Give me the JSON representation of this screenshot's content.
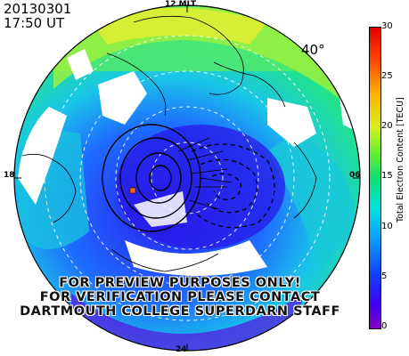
{
  "header": {
    "date": "20130301",
    "time": "17:50 UT"
  },
  "map": {
    "mlt_labels": {
      "top": "12 MLT",
      "left": "18",
      "right": "06",
      "bottom": "24"
    },
    "latitude_label": "40°"
  },
  "watermark": {
    "line1": "FOR PREVIEW PURPOSES ONLY!",
    "line2": "FOR VERIFICATION PLEASE CONTACT",
    "line3": "DARTMOUTH COLLEGE SUPERDARN STAFF"
  },
  "colorbar": {
    "title": "Total Electron Content [TECU]",
    "ticks": [
      "30",
      "25",
      "20",
      "15",
      "10",
      "5",
      "0"
    ],
    "range": [
      0,
      30
    ]
  },
  "colors": {
    "ring": "#000000",
    "grid": "#ffffff"
  }
}
